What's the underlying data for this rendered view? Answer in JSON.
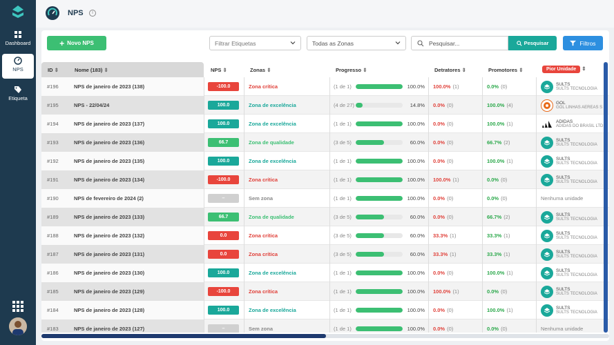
{
  "sidebar": {
    "items": [
      {
        "label": "Dashboard",
        "icon": "dashboard-icon"
      },
      {
        "label": "NPS",
        "icon": "nps-gauge-icon",
        "active": true
      },
      {
        "label": "Etiqueta",
        "icon": "tag-icon"
      }
    ]
  },
  "header": {
    "title": "NPS"
  },
  "toolbar": {
    "new_label": "Novo NPS",
    "tags_placeholder": "Filtrar Etiquetas",
    "zones_value": "Todas as Zonas",
    "search_placeholder": "Pesquisar...",
    "search_label": "Pesquisar",
    "filters_label": "Filtros"
  },
  "table": {
    "columns": {
      "id": "ID",
      "name": "Nome (183)",
      "nps": "NPS",
      "zones": "Zonas",
      "progress": "Progresso",
      "detractors": "Detratores",
      "promoters": "Promotores",
      "worst_unit": "Pior Unidade"
    },
    "rows": [
      {
        "id": "#196",
        "name": "NPS de janeiro de 2023 (138)",
        "nps": "-100.0",
        "nps_color": "#e8453c",
        "zone": "Zona crítica",
        "zone_color": "#e0413a",
        "prog": "(1 de 1)",
        "fill": 1.0,
        "pct": "100.0%",
        "det": "100.0%",
        "det_n": "(1)",
        "pro": "0.0%",
        "pro_n": "(0)",
        "unit": "SULTS",
        "unit_sub": "SULTS TECNOLOGIA",
        "unit_logo": "sults"
      },
      {
        "id": "#195",
        "name": "NPS - 22/04/24",
        "nps": "100.0",
        "nps_color": "#1aa89a",
        "zone": "Zona de excelência",
        "zone_color": "#1aa89a",
        "prog": "(4 de 27)",
        "fill": 0.148,
        "pct": "14.8%",
        "det": "0.0%",
        "det_n": "(0)",
        "pro": "100.0%",
        "pro_n": "(4)",
        "unit": "GOL",
        "unit_sub": "GOL LINHAS AEREAS S",
        "unit_logo": "gol"
      },
      {
        "id": "#194",
        "name": "NPS de janeiro de 2023 (137)",
        "nps": "100.0",
        "nps_color": "#1aa89a",
        "zone": "Zona de excelência",
        "zone_color": "#1aa89a",
        "prog": "(1 de 1)",
        "fill": 1.0,
        "pct": "100.0%",
        "det": "0.0%",
        "det_n": "(0)",
        "pro": "100.0%",
        "pro_n": "(1)",
        "unit": "ADIDAS",
        "unit_sub": "ADIDAS DO BRASIL LTD",
        "unit_logo": "adidas"
      },
      {
        "id": "#193",
        "name": "NPS de janeiro de 2023 (136)",
        "nps": "66.7",
        "nps_color": "#3cbf73",
        "zone": "Zona de qualidade",
        "zone_color": "#3cbf73",
        "prog": "(3 de 5)",
        "fill": 0.6,
        "pct": "60.0%",
        "det": "0.0%",
        "det_n": "(0)",
        "pro": "66.7%",
        "pro_n": "(2)",
        "unit": "SULTS",
        "unit_sub": "SULTS TECNOLOGIA",
        "unit_logo": "sults"
      },
      {
        "id": "#192",
        "name": "NPS de janeiro de 2023 (135)",
        "nps": "100.0",
        "nps_color": "#1aa89a",
        "zone": "Zona de excelência",
        "zone_color": "#1aa89a",
        "prog": "(1 de 1)",
        "fill": 1.0,
        "pct": "100.0%",
        "det": "0.0%",
        "det_n": "(0)",
        "pro": "100.0%",
        "pro_n": "(1)",
        "unit": "SULTS",
        "unit_sub": "SULTS TECNOLOGIA",
        "unit_logo": "sults"
      },
      {
        "id": "#191",
        "name": "NPS de janeiro de 2023 (134)",
        "nps": "-100.0",
        "nps_color": "#e8453c",
        "zone": "Zona crítica",
        "zone_color": "#e0413a",
        "prog": "(1 de 1)",
        "fill": 1.0,
        "pct": "100.0%",
        "det": "100.0%",
        "det_n": "(1)",
        "pro": "0.0%",
        "pro_n": "(0)",
        "unit": "SULTS",
        "unit_sub": "SULTS TECNOLOGIA",
        "unit_logo": "sults"
      },
      {
        "id": "#190",
        "name": "NPS de fevereiro de 2024 (2)",
        "nps": "–",
        "nps_color": "#d0d0d0",
        "zone": "Sem zona",
        "zone_color": "#888888",
        "prog": "(1 de 1)",
        "fill": 1.0,
        "pct": "100.0%",
        "det": "0.0%",
        "det_n": "(0)",
        "pro": "0.0%",
        "pro_n": "(0)",
        "unit": "Nenhuma unidade",
        "unit_sub": "",
        "unit_logo": "none"
      },
      {
        "id": "#189",
        "name": "NPS de janeiro de 2023 (133)",
        "nps": "66.7",
        "nps_color": "#3cbf73",
        "zone": "Zona de qualidade",
        "zone_color": "#3cbf73",
        "prog": "(3 de 5)",
        "fill": 0.6,
        "pct": "60.0%",
        "det": "0.0%",
        "det_n": "(0)",
        "pro": "66.7%",
        "pro_n": "(2)",
        "unit": "SULTS",
        "unit_sub": "SULTS TECNOLOGIA",
        "unit_logo": "sults"
      },
      {
        "id": "#188",
        "name": "NPS de janeiro de 2023 (132)",
        "nps": "0.0",
        "nps_color": "#e8453c",
        "zone": "Zona crítica",
        "zone_color": "#e0413a",
        "prog": "(3 de 5)",
        "fill": 0.6,
        "pct": "60.0%",
        "det": "33.3%",
        "det_n": "(1)",
        "pro": "33.3%",
        "pro_n": "(1)",
        "unit": "SULTS",
        "unit_sub": "SULTS TECNOLOGIA",
        "unit_logo": "sults"
      },
      {
        "id": "#187",
        "name": "NPS de janeiro de 2023 (131)",
        "nps": "0.0",
        "nps_color": "#e8453c",
        "zone": "Zona crítica",
        "zone_color": "#e0413a",
        "prog": "(3 de 5)",
        "fill": 0.6,
        "pct": "60.0%",
        "det": "33.3%",
        "det_n": "(1)",
        "pro": "33.3%",
        "pro_n": "(1)",
        "unit": "SULTS",
        "unit_sub": "SULTS TECNOLOGIA",
        "unit_logo": "sults"
      },
      {
        "id": "#186",
        "name": "NPS de janeiro de 2023 (130)",
        "nps": "100.0",
        "nps_color": "#1aa89a",
        "zone": "Zona de excelência",
        "zone_color": "#1aa89a",
        "prog": "(1 de 1)",
        "fill": 1.0,
        "pct": "100.0%",
        "det": "0.0%",
        "det_n": "(0)",
        "pro": "100.0%",
        "pro_n": "(1)",
        "unit": "SULTS",
        "unit_sub": "SULTS TECNOLOGIA",
        "unit_logo": "sults"
      },
      {
        "id": "#185",
        "name": "NPS de janeiro de 2023 (129)",
        "nps": "-100.0",
        "nps_color": "#e8453c",
        "zone": "Zona crítica",
        "zone_color": "#e0413a",
        "prog": "(1 de 1)",
        "fill": 1.0,
        "pct": "100.0%",
        "det": "100.0%",
        "det_n": "(1)",
        "pro": "0.0%",
        "pro_n": "(0)",
        "unit": "SULTS",
        "unit_sub": "SULTS TECNOLOGIA",
        "unit_logo": "sults"
      },
      {
        "id": "#184",
        "name": "NPS de janeiro de 2023 (128)",
        "nps": "100.0",
        "nps_color": "#1aa89a",
        "zone": "Zona de excelência",
        "zone_color": "#1aa89a",
        "prog": "(1 de 1)",
        "fill": 1.0,
        "pct": "100.0%",
        "det": "0.0%",
        "det_n": "(0)",
        "pro": "100.0%",
        "pro_n": "(1)",
        "unit": "SULTS",
        "unit_sub": "SULTS TECNOLOGIA",
        "unit_logo": "sults"
      },
      {
        "id": "#183",
        "name": "NPS de janeiro de 2023 (127)",
        "nps": "–",
        "nps_color": "#d0d0d0",
        "zone": "Sem zona",
        "zone_color": "#888888",
        "prog": "(1 de 1)",
        "fill": 1.0,
        "pct": "100.0%",
        "det": "0.0%",
        "det_n": "(0)",
        "pro": "0.0%",
        "pro_n": "(0)",
        "unit": "Nenhuma unidade",
        "unit_sub": "",
        "unit_logo": "none"
      }
    ]
  }
}
